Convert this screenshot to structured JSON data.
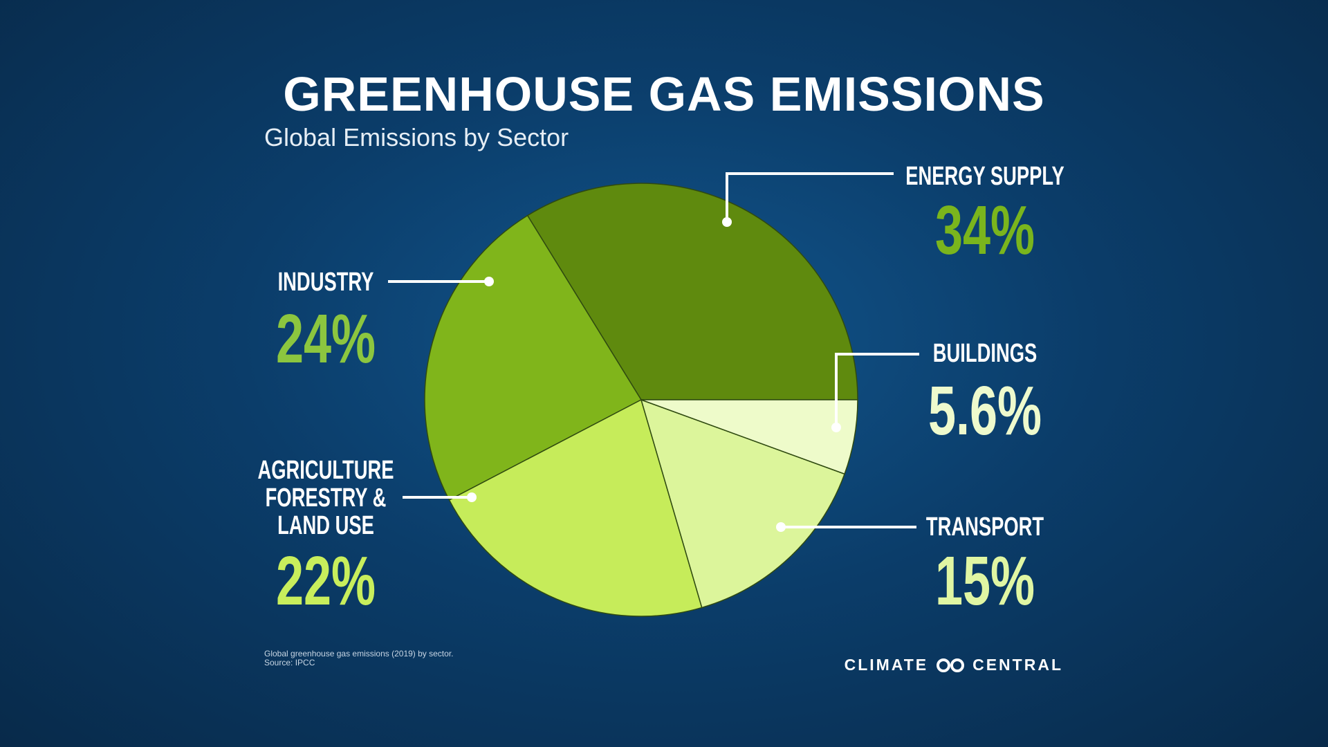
{
  "chart_data": {
    "type": "pie",
    "title": "GREENHOUSE GAS EMISSIONS",
    "subtitle": "Global Emissions by Sector",
    "categories": [
      "ENERGY SUPPLY",
      "INDUSTRY",
      "AGRICULTURE FORESTRY & LAND USE",
      "TRANSPORT",
      "BUILDINGS"
    ],
    "values": [
      34,
      24,
      22,
      15,
      5.6
    ],
    "value_labels": [
      "34%",
      "24%",
      "22%",
      "15%",
      "5.6%"
    ],
    "colors": [
      "#5f8a0e",
      "#80b51b",
      "#c6ec5a",
      "#dcf59b",
      "#eefbca"
    ],
    "label_colors": [
      "#7ab51d",
      "#8cc63f",
      "#c8ee5c",
      "#e0f6a3",
      "#eefacd"
    ]
  },
  "footnote": [
    "Global greenhouse gas emissions (2019) by sector.",
    "Source: IPCC"
  ],
  "logo": [
    "CLIMATE",
    "CENTRAL"
  ]
}
